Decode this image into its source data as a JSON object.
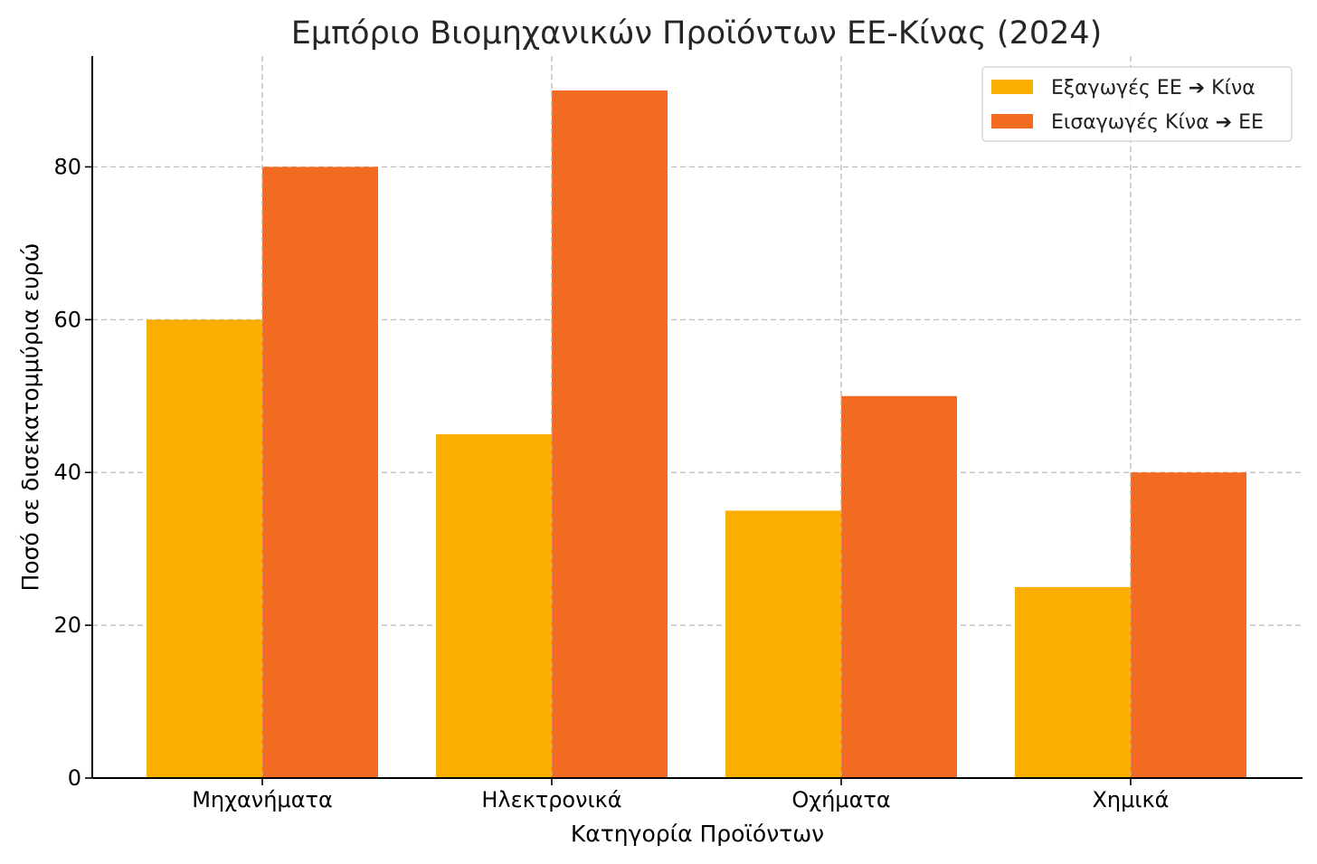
{
  "chart_data": {
    "type": "bar",
    "title": "Εμπόριο Βιομηχανικών Προϊόντων ΕΕ-Κίνας (2024)",
    "xlabel": "Κατηγορία Προϊόντων",
    "ylabel": "Ποσό σε δισεκατομμύρια ευρώ",
    "categories": [
      "Μηχανήματα",
      "Ηλεκτρονικά",
      "Οχήματα",
      "Χημικά"
    ],
    "series": [
      {
        "name": "Εξαγωγές ΕΕ ➔ Κίνα",
        "color": "#FBAE02",
        "values": [
          60,
          45,
          35,
          25
        ]
      },
      {
        "name": "Εισαγωγές Κίνα ➔ ΕΕ",
        "color": "#F26B21",
        "values": [
          80,
          90,
          50,
          40
        ]
      }
    ],
    "ylim": [
      0,
      94.5
    ],
    "yticks": [
      0,
      20,
      40,
      60,
      80
    ],
    "grid": true,
    "legend_position": "top-right"
  }
}
